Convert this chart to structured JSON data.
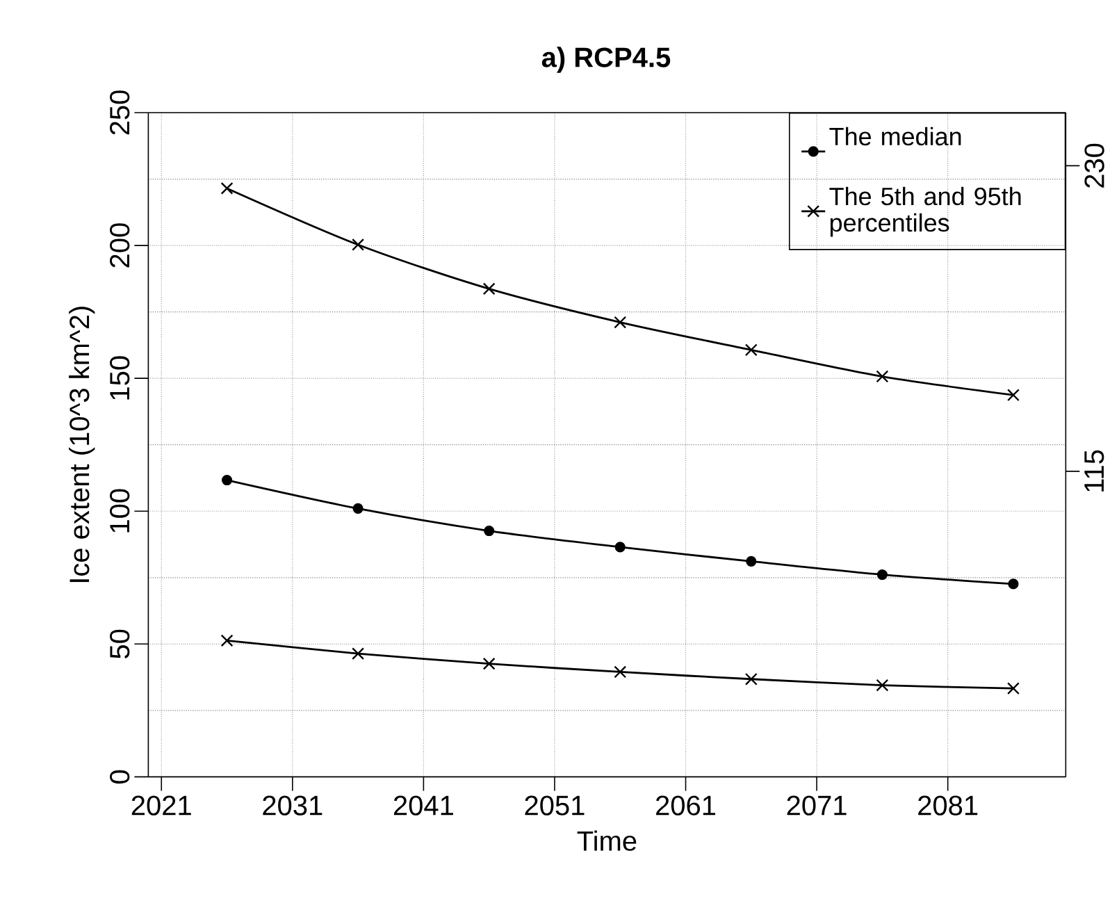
{
  "chart_data": {
    "type": "line",
    "title": "a) RCP4.5",
    "xlabel": "Time",
    "ylabel": "Ice extent (10^3 km^2)",
    "x": [
      2026,
      2036,
      2046,
      2056,
      2066,
      2076,
      2086
    ],
    "series": [
      {
        "name": "The median",
        "color": "#000000",
        "marker": "circle",
        "values": [
          111.7,
          101.0,
          92.6,
          86.5,
          81.1,
          76.1,
          72.6
        ]
      },
      {
        "name": "The 5th and 95th percentiles",
        "color": "#000000",
        "marker": "cross",
        "values": [
          221.5,
          200.3,
          183.7,
          171.1,
          160.7,
          150.7,
          143.7
        ]
      },
      {
        "color": "#000000",
        "marker": "cross",
        "values": [
          51.3,
          46.4,
          42.6,
          39.5,
          36.8,
          34.5,
          33.3
        ]
      }
    ],
    "xlim": [
      2020,
      2090
    ],
    "xticks": [
      2021,
      2031,
      2041,
      2051,
      2061,
      2071,
      2081
    ],
    "ylim": [
      0,
      250
    ],
    "yticks": [
      0,
      50,
      100,
      150,
      200,
      250
    ],
    "y2lim": [
      0,
      250
    ],
    "y2ticks": [
      115,
      230
    ],
    "grid": true,
    "legend": "top right",
    "line_style": "solid"
  }
}
